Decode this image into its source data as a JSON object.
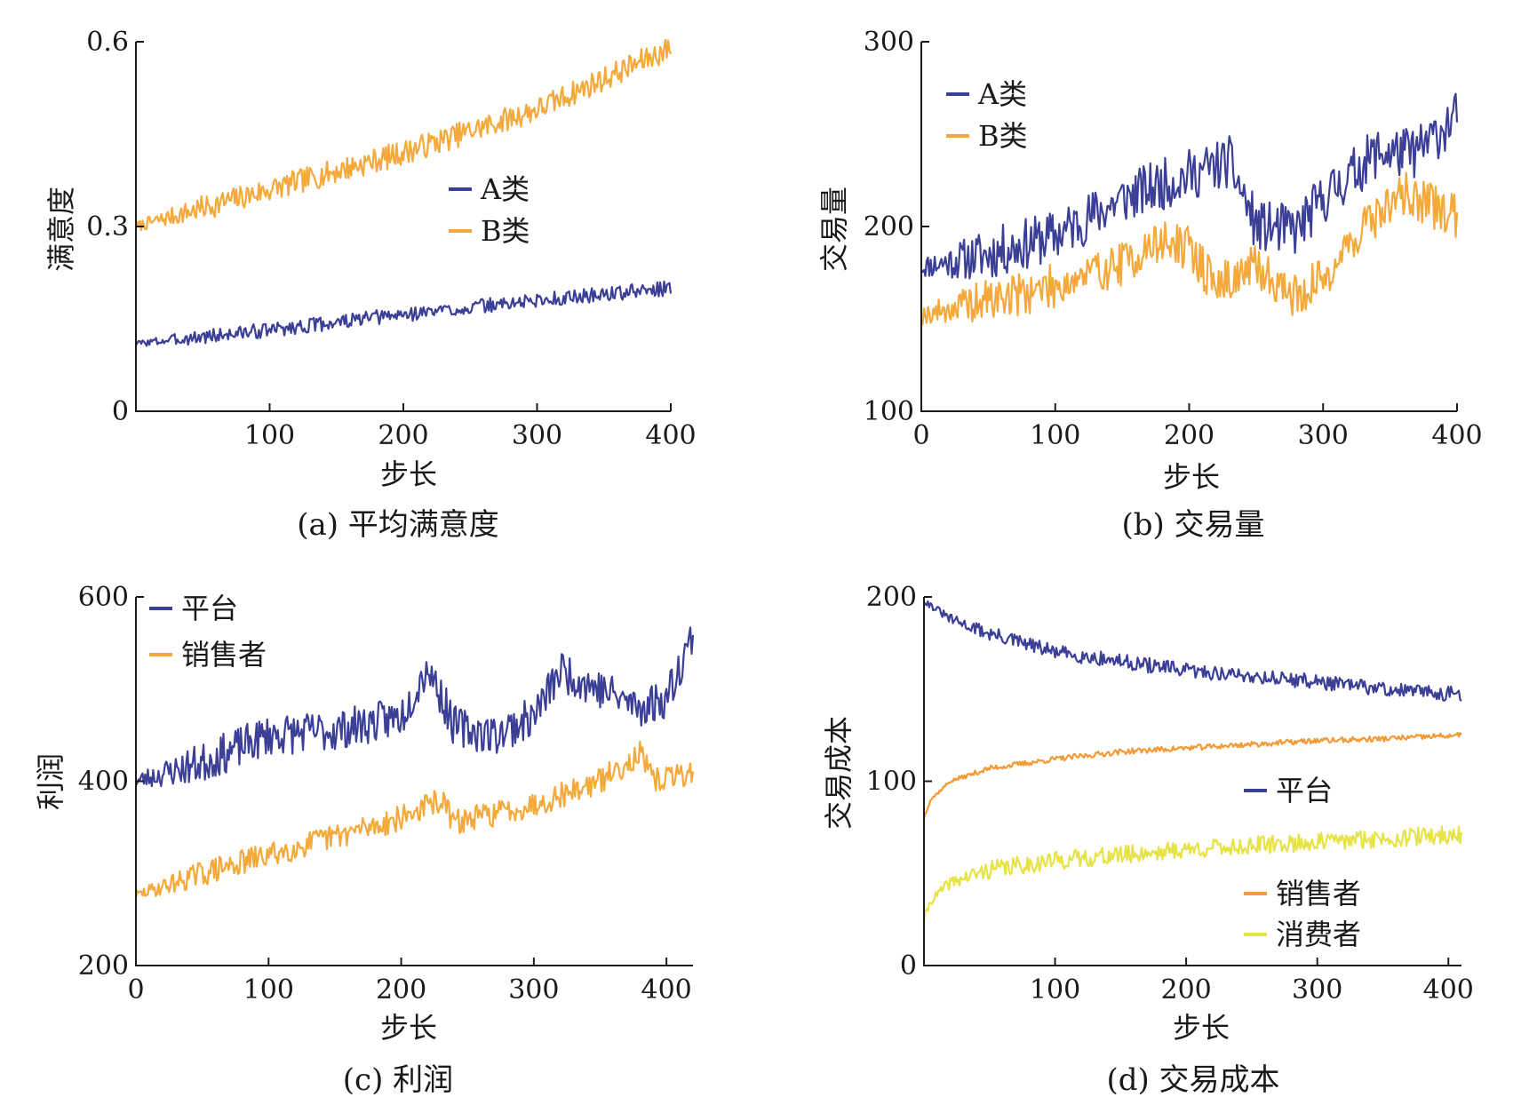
{
  "colors": {
    "navy": "#3b3f96",
    "orange": "#f4a93a",
    "orange2": "#f39a36",
    "yellow": "#e6e347"
  },
  "chart_data": [
    {
      "id": "a",
      "type": "line",
      "caption": "(a) 平均满意度",
      "xlabel": "步长",
      "ylabel": "满意度",
      "xlim": [
        0,
        400
      ],
      "ylim": [
        0,
        0.6
      ],
      "x_ticks": [
        100,
        200,
        300,
        400
      ],
      "x_tick_labels": [
        "100",
        "200",
        "300",
        "400"
      ],
      "y_ticks": [
        0,
        0.3,
        0.6
      ],
      "y_tick_labels": [
        "0",
        "0.3",
        "0.6"
      ],
      "legend_position": "center",
      "series": [
        {
          "name": "A类",
          "color": "#3b3f96",
          "noise": 0.012,
          "seed": 3,
          "points": [
            [
              0,
              0.11
            ],
            [
              100,
              0.132
            ],
            [
              200,
              0.157
            ],
            [
              300,
              0.18
            ],
            [
              400,
              0.2
            ]
          ]
        },
        {
          "name": "B类",
          "color": "#f4a93a",
          "noise": 0.02,
          "seed": 7,
          "points": [
            [
              0,
              0.3
            ],
            [
              100,
              0.36
            ],
            [
              200,
              0.42
            ],
            [
              300,
              0.49
            ],
            [
              400,
              0.59
            ]
          ]
        }
      ]
    },
    {
      "id": "b",
      "type": "line",
      "caption": "(b) 交易量",
      "xlabel": "步长",
      "ylabel": "交易量",
      "xlim": [
        0,
        400
      ],
      "ylim": [
        100,
        300
      ],
      "x_ticks": [
        0,
        100,
        200,
        300,
        400
      ],
      "x_tick_labels": [
        "0",
        "100",
        "200",
        "300",
        "400"
      ],
      "y_ticks": [
        100,
        200,
        300
      ],
      "y_tick_labels": [
        "100",
        "200",
        "300"
      ],
      "legend_position": "top-left",
      "series": [
        {
          "name": "A类",
          "color": "#3b3f96",
          "noise": 14,
          "seed": 11,
          "points": [
            [
              0,
              178
            ],
            [
              50,
              185
            ],
            [
              100,
              195
            ],
            [
              150,
              215
            ],
            [
              200,
              228
            ],
            [
              230,
              235
            ],
            [
              250,
              200
            ],
            [
              280,
              198
            ],
            [
              300,
              215
            ],
            [
              340,
              240
            ],
            [
              370,
              240
            ],
            [
              400,
              260
            ]
          ]
        },
        {
          "name": "B类",
          "color": "#f4a93a",
          "noise": 12,
          "seed": 19,
          "points": [
            [
              0,
              152
            ],
            [
              50,
              160
            ],
            [
              100,
              168
            ],
            [
              150,
              180
            ],
            [
              180,
              192
            ],
            [
              200,
              188
            ],
            [
              220,
              168
            ],
            [
              250,
              178
            ],
            [
              280,
              162
            ],
            [
              300,
              172
            ],
            [
              330,
              200
            ],
            [
              360,
              218
            ],
            [
              400,
              205
            ]
          ]
        }
      ]
    },
    {
      "id": "c",
      "type": "line",
      "caption": "(c) 利润",
      "xlabel": "步长",
      "ylabel": "利润",
      "xlim": [
        0,
        420
      ],
      "ylim": [
        200,
        600
      ],
      "x_ticks": [
        0,
        100,
        200,
        300,
        400
      ],
      "x_tick_labels": [
        "0",
        "100",
        "200",
        "300",
        "400"
      ],
      "y_ticks": [
        200,
        400,
        600
      ],
      "y_tick_labels": [
        "200",
        "400",
        "600"
      ],
      "legend_position": "top-left",
      "series": [
        {
          "name": "平台",
          "color": "#3b3f96",
          "noise": 22,
          "seed": 23,
          "points": [
            [
              0,
              400
            ],
            [
              50,
              420
            ],
            [
              100,
              450
            ],
            [
              150,
              455
            ],
            [
              200,
              470
            ],
            [
              220,
              525
            ],
            [
              240,
              460
            ],
            [
              270,
              450
            ],
            [
              300,
              470
            ],
            [
              320,
              520
            ],
            [
              350,
              500
            ],
            [
              380,
              480
            ],
            [
              400,
              490
            ],
            [
              420,
              560
            ]
          ]
        },
        {
          "name": "销售者",
          "color": "#f4a93a",
          "noise": 14,
          "seed": 29,
          "points": [
            [
              0,
              276
            ],
            [
              50,
              300
            ],
            [
              100,
              320
            ],
            [
              150,
              340
            ],
            [
              200,
              360
            ],
            [
              230,
              380
            ],
            [
              240,
              355
            ],
            [
              300,
              375
            ],
            [
              350,
              400
            ],
            [
              380,
              430
            ],
            [
              390,
              400
            ],
            [
              420,
              410
            ]
          ]
        }
      ]
    },
    {
      "id": "d",
      "type": "line",
      "caption": "(d) 交易成本",
      "xlabel": "步长",
      "ylabel": "交易成本",
      "xlim": [
        0,
        410
      ],
      "ylim": [
        0,
        200
      ],
      "x_ticks": [
        100,
        200,
        300,
        400
      ],
      "x_tick_labels": [
        "100",
        "200",
        "300",
        "400"
      ],
      "y_ticks": [
        0,
        100,
        200
      ],
      "y_tick_labels": [
        "0",
        "100",
        "200"
      ],
      "legend_position": "right",
      "series": [
        {
          "name": "平台",
          "color": "#3b3f96",
          "noise": 4,
          "seed": 31,
          "points": [
            [
              0,
              198
            ],
            [
              20,
              188
            ],
            [
              50,
              180
            ],
            [
              100,
              170
            ],
            [
              150,
              165
            ],
            [
              200,
              160
            ],
            [
              250,
              157
            ],
            [
              300,
              154
            ],
            [
              350,
              150
            ],
            [
              410,
              147
            ]
          ]
        },
        {
          "name": "销售者",
          "color": "#f39a36",
          "noise": 1.5,
          "seed": 37,
          "points": [
            [
              0,
              80
            ],
            [
              5,
              90
            ],
            [
              20,
              100
            ],
            [
              50,
              107
            ],
            [
              100,
              112
            ],
            [
              150,
              116
            ],
            [
              200,
              118
            ],
            [
              250,
              120
            ],
            [
              300,
              122
            ],
            [
              350,
              123
            ],
            [
              410,
              125
            ]
          ]
        },
        {
          "name": "消费者",
          "color": "#e6e347",
          "noise": 5,
          "seed": 41,
          "points": [
            [
              0,
              25
            ],
            [
              5,
              35
            ],
            [
              20,
              45
            ],
            [
              50,
              52
            ],
            [
              100,
              57
            ],
            [
              150,
              60
            ],
            [
              200,
              63
            ],
            [
              250,
              65
            ],
            [
              300,
              67
            ],
            [
              350,
              69
            ],
            [
              410,
              71
            ]
          ]
        }
      ]
    }
  ]
}
